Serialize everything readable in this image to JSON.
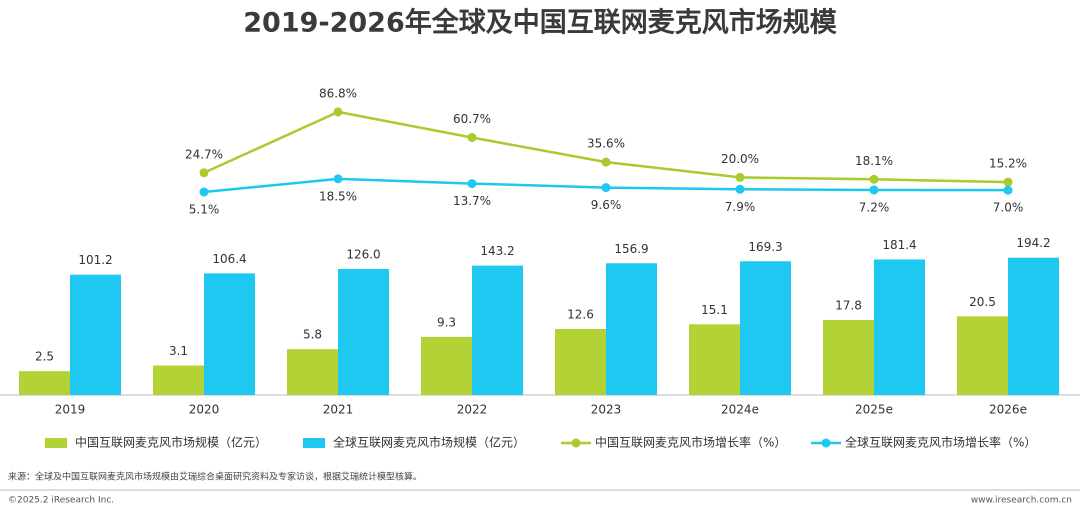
{
  "chart_data": {
    "type": "bar",
    "title": "2019-2026年全球及中国互联网麦克风市场规模",
    "categories": [
      "2019",
      "2020",
      "2021",
      "2022",
      "2023",
      "2024e",
      "2025e",
      "2026e"
    ],
    "log_scale": true,
    "ylim": [
      1,
      1000
    ],
    "y2lim": [
      0,
      100
    ],
    "series": [
      {
        "name": "中国互联网麦克风市场规模（亿元）",
        "type": "bar",
        "color": "#b3d235",
        "values": [
          2.5,
          3.1,
          5.8,
          9.3,
          12.6,
          15.1,
          17.8,
          20.5
        ],
        "value_labels": [
          "2.5",
          "3.1",
          "5.8",
          "9.3",
          "12.6",
          "15.1",
          "17.8",
          "20.5"
        ]
      },
      {
        "name": "全球互联网麦克风市场规模（亿元）",
        "type": "bar",
        "color": "#1ec8f0",
        "values": [
          101.2,
          106.4,
          126.0,
          143.2,
          156.9,
          169.3,
          181.4,
          194.2
        ],
        "value_labels": [
          "101.2",
          "106.4",
          "126.0",
          "143.2",
          "156.9",
          "169.3",
          "181.4",
          "194.2"
        ]
      },
      {
        "name": "中国互联网麦克风市场增长率（%）",
        "type": "line",
        "axis": "y2",
        "color": "#a9cb2f",
        "label_pos": "above",
        "values": [
          null,
          24.7,
          86.8,
          60.7,
          35.6,
          20.0,
          18.1,
          15.2
        ],
        "value_labels": [
          null,
          "24.7%",
          "86.8%",
          "60.7%",
          "35.6%",
          "20.0%",
          "18.1%",
          "15.2%"
        ]
      },
      {
        "name": "全球互联网麦克风市场增长率（%）",
        "type": "line",
        "axis": "y2",
        "color": "#1ec8f0",
        "label_pos": "below",
        "values": [
          null,
          5.1,
          18.5,
          13.7,
          9.6,
          7.9,
          7.2,
          7.0
        ],
        "value_labels": [
          null,
          "5.1%",
          "18.5%",
          "13.7%",
          "9.6%",
          "7.9%",
          "7.2%",
          "7.0%"
        ]
      }
    ],
    "source": "来源：全球及中国互联网麦克风市场规模由艾瑞综合桌面研究资料及专家访谈，根据艾瑞统计模型核算。",
    "footer_left": "©2025.2 iResearch Inc.",
    "footer_right": "www.iresearch.com.cn"
  }
}
